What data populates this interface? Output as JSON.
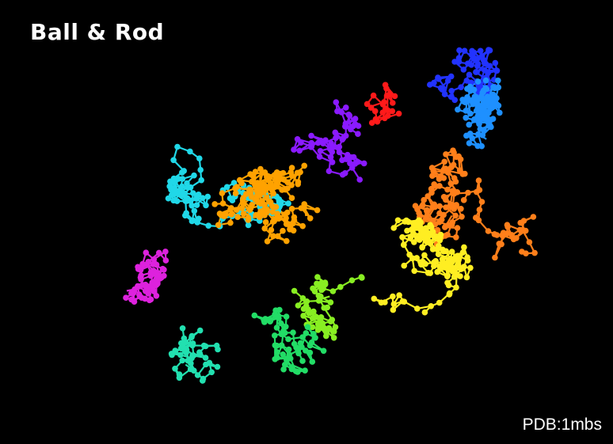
{
  "title": "Ball & Rod",
  "pdb_label": "PDB:1mbs",
  "background_color": "#000000",
  "rendering_style": "ball-and-rod",
  "color_scheme": "rainbow by residue (N-terminus red → C-terminus magenta)",
  "chain_colors": [
    "#ff1a1a",
    "#8a1aff",
    "#2233ff",
    "#1e90ff",
    "#20d8e8",
    "#ff7f1a",
    "#ffa200",
    "#ffee22",
    "#88ee22",
    "#22dd66",
    "#22e0b0",
    "#dd22dd"
  ]
}
